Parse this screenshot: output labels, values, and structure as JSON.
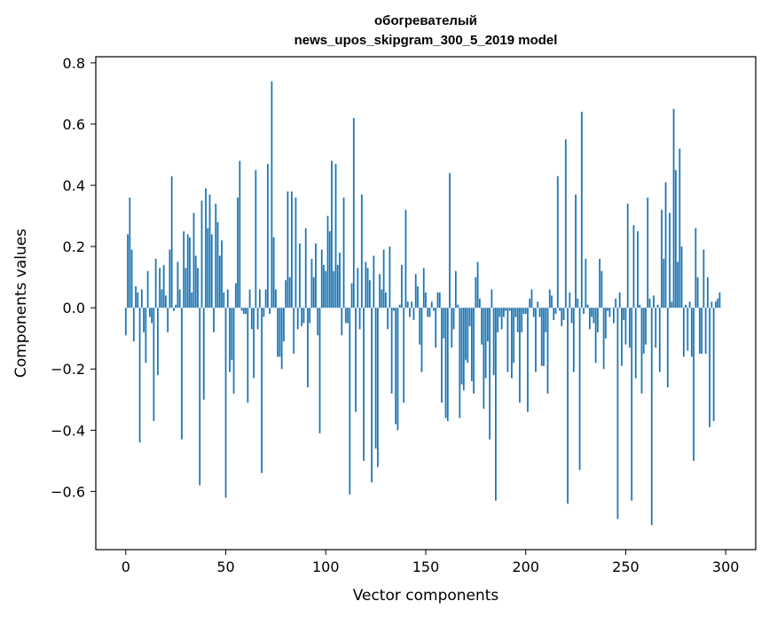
{
  "chart_data": {
    "type": "bar",
    "title_line1": "обогревателый",
    "title_line2": "news_upos_skipgram_300_5_2019 model",
    "xlabel": "Vector components",
    "ylabel": "Components values",
    "xlim": [
      -15,
      315
    ],
    "ylim": [
      -0.79,
      0.82
    ],
    "xticks": [
      0,
      50,
      100,
      150,
      200,
      250,
      300
    ],
    "yticks": [
      -0.6,
      -0.4,
      -0.2,
      0.0,
      0.2,
      0.4,
      0.6,
      0.8
    ],
    "ytick_labels": [
      "−0.6",
      "−0.4",
      "−0.2",
      "0.0",
      "0.2",
      "0.4",
      "0.6",
      "0.8"
    ],
    "bar_color": "#1f77b4",
    "grid": false,
    "values": [
      -0.09,
      0.24,
      0.36,
      0.19,
      -0.11,
      0.07,
      0.05,
      -0.44,
      0.06,
      -0.08,
      -0.18,
      0.12,
      -0.03,
      -0.05,
      -0.37,
      0.16,
      -0.22,
      0.13,
      0.06,
      0.14,
      0.04,
      -0.08,
      0.19,
      0.43,
      -0.01,
      0.01,
      0.15,
      0.06,
      -0.43,
      0.25,
      0.13,
      0.24,
      0.23,
      0.05,
      0.31,
      0.17,
      0.13,
      -0.58,
      0.35,
      -0.3,
      0.39,
      0.26,
      0.37,
      0.24,
      -0.08,
      0.34,
      0.28,
      0.17,
      0.22,
      0.05,
      -0.62,
      0.06,
      -0.21,
      -0.17,
      -0.28,
      0.08,
      0.36,
      0.48,
      -0.01,
      -0.02,
      -0.02,
      -0.31,
      0.06,
      -0.07,
      -0.23,
      0.45,
      -0.07,
      0.06,
      -0.54,
      -0.03,
      0.06,
      0.47,
      -0.02,
      0.74,
      0.23,
      0.06,
      -0.16,
      -0.16,
      -0.2,
      -0.11,
      0.09,
      0.38,
      0.1,
      0.38,
      -0.15,
      0.36,
      -0.07,
      0.21,
      -0.06,
      -0.05,
      0.26,
      -0.26,
      -0.05,
      0.16,
      0.1,
      0.21,
      -0.09,
      -0.41,
      0.19,
      0.14,
      0.12,
      0.3,
      0.25,
      0.48,
      0.12,
      0.47,
      0.14,
      0.18,
      -0.09,
      0.36,
      -0.05,
      -0.05,
      -0.61,
      0.08,
      0.62,
      -0.34,
      0.13,
      -0.07,
      0.37,
      -0.5,
      0.15,
      0.13,
      0.09,
      -0.57,
      0.17,
      -0.46,
      -0.52,
      0.11,
      0.06,
      0.19,
      0.05,
      -0.07,
      0.2,
      -0.28,
      -0.01,
      -0.38,
      -0.4,
      0.01,
      0.14,
      -0.31,
      0.32,
      0.02,
      -0.03,
      0.02,
      -0.04,
      0.11,
      0.07,
      -0.12,
      -0.21,
      0.13,
      0.05,
      -0.03,
      -0.03,
      0.02,
      -0.01,
      -0.13,
      0.05,
      0.05,
      -0.31,
      -0.1,
      -0.36,
      -0.37,
      0.44,
      -0.13,
      -0.07,
      0.12,
      0.01,
      -0.36,
      -0.25,
      -0.27,
      -0.17,
      -0.18,
      -0.06,
      -0.24,
      -0.28,
      0.1,
      0.15,
      0.03,
      -0.12,
      -0.33,
      -0.23,
      -0.11,
      -0.43,
      0.06,
      -0.22,
      -0.63,
      -0.08,
      -0.03,
      -0.07,
      -0.03,
      -0.01,
      -0.21,
      -0.01,
      -0.23,
      -0.18,
      -0.03,
      -0.08,
      -0.31,
      -0.08,
      -0.02,
      -0.02,
      -0.34,
      0.03,
      0.06,
      -0.03,
      -0.21,
      0.02,
      -0.03,
      -0.19,
      -0.19,
      -0.08,
      -0.28,
      0.06,
      0.04,
      -0.04,
      -0.02,
      0.43,
      -0.01,
      -0.06,
      -0.04,
      0.55,
      -0.64,
      0.05,
      -0.05,
      -0.21,
      0.37,
      0.03,
      -0.53,
      0.64,
      -0.02,
      0.16,
      0.01,
      -0.07,
      -0.03,
      -0.05,
      -0.18,
      -0.08,
      0.16,
      0.12,
      -0.2,
      -0.1,
      -0.01,
      -0.03,
      0.0,
      -0.05,
      0.03,
      -0.69,
      0.05,
      -0.19,
      -0.04,
      -0.12,
      0.34,
      -0.13,
      -0.63,
      0.27,
      -0.23,
      0.25,
      0.01,
      -0.28,
      -0.15,
      -0.12,
      0.36,
      0.03,
      -0.71,
      0.04,
      -0.13,
      0.01,
      -0.21,
      0.32,
      0.16,
      0.41,
      -0.26,
      0.31,
      0.02,
      0.65,
      0.45,
      0.15,
      0.52,
      0.2,
      -0.16,
      0.01,
      -0.14,
      0.02,
      -0.16,
      -0.5,
      0.26,
      0.1,
      -0.15,
      -0.15,
      0.19,
      -0.15,
      0.1,
      -0.39,
      0.02,
      -0.37,
      0.02,
      0.03,
      0.05
    ]
  }
}
